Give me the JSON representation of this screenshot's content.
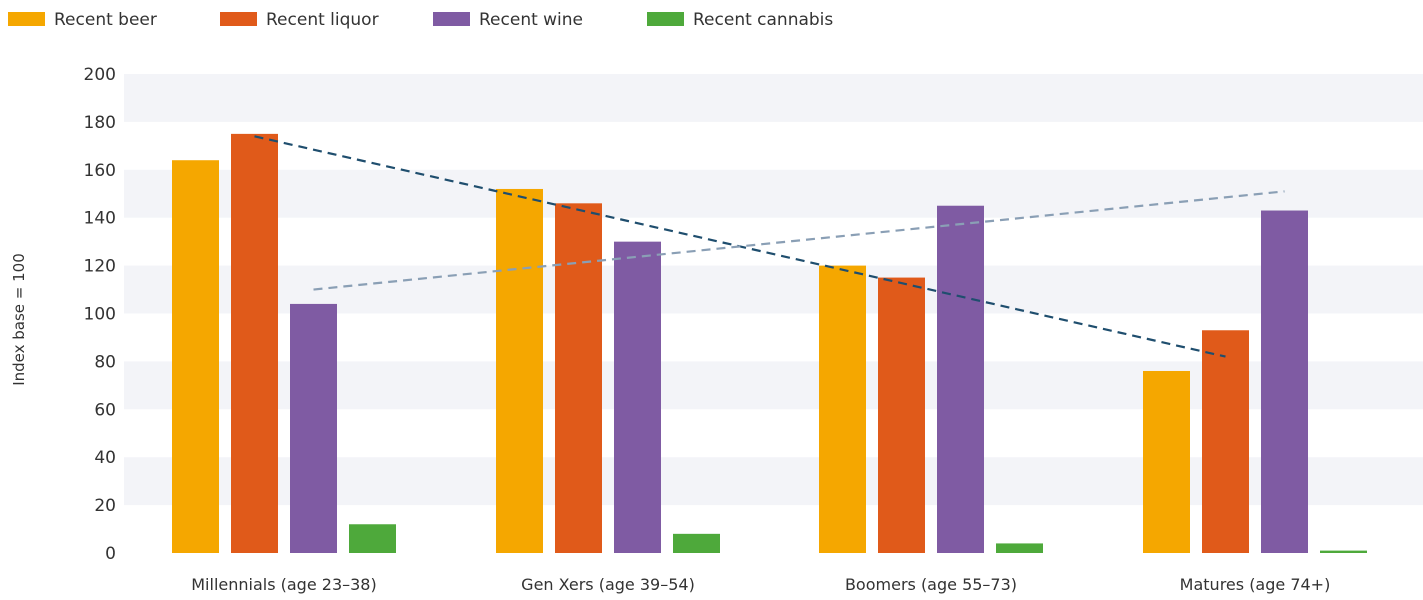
{
  "chart_data": {
    "type": "bar",
    "ylabel": "Index base = 100",
    "ylim": [
      0,
      200
    ],
    "yticks": [
      0,
      20,
      40,
      60,
      80,
      100,
      120,
      140,
      160,
      180,
      200
    ],
    "grid": "alternating horizontal bands",
    "legend_position": "top-left",
    "categories": [
      "Millennials (age 23–38)",
      "Gen Xers (age 39–54)",
      "Boomers (age 55–73)",
      "Matures (age 74+)"
    ],
    "series": [
      {
        "name": "Recent beer",
        "color": "#F5A700",
        "values": [
          164,
          152,
          120,
          76
        ]
      },
      {
        "name": "Recent liquor",
        "color": "#E05A1A",
        "values": [
          175,
          146,
          115,
          93
        ]
      },
      {
        "name": "Recent wine",
        "color": "#7F5BA3",
        "values": [
          104,
          130,
          145,
          143
        ]
      },
      {
        "name": "Recent cannabis",
        "color": "#4EA93B",
        "values": [
          12,
          8,
          4,
          1
        ]
      }
    ],
    "trendlines": [
      {
        "series": "Recent liquor",
        "color": "#1F4E6E",
        "style": "dashed",
        "from": {
          "category": 0,
          "value": 174
        },
        "to": {
          "category": 3,
          "value": 82
        }
      },
      {
        "series": "Recent wine",
        "color": "#8A9FB5",
        "style": "dashed",
        "from": {
          "category": 0,
          "value": 110
        },
        "to": {
          "category": 3,
          "value": 151
        }
      }
    ]
  }
}
